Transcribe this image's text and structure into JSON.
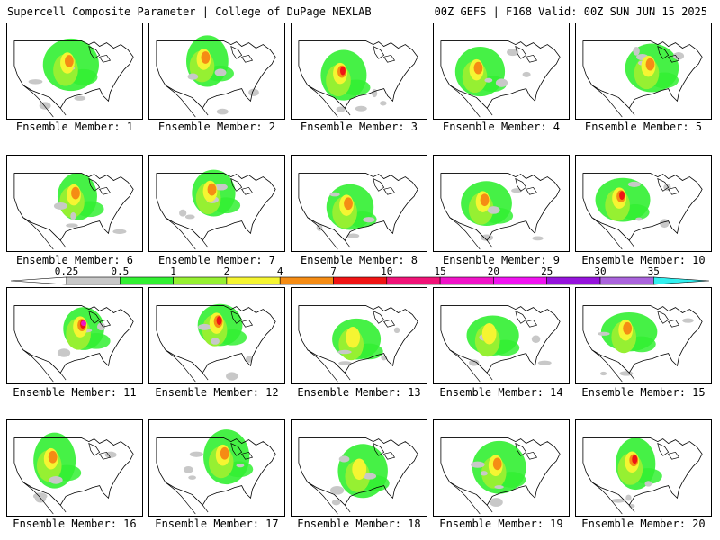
{
  "header": {
    "title": "Supercell Composite Parameter | College of DuPage NEXLAB",
    "run_info": "00Z GEFS | F168 Valid: 00Z SUN JUN 15 2025"
  },
  "members": [
    {
      "label": "Ensemble Member: 1",
      "intensity": 2
    },
    {
      "label": "Ensemble Member: 2",
      "intensity": 2
    },
    {
      "label": "Ensemble Member: 3",
      "intensity": 3
    },
    {
      "label": "Ensemble Member: 4",
      "intensity": 2
    },
    {
      "label": "Ensemble Member: 5",
      "intensity": 2
    },
    {
      "label": "Ensemble Member: 6",
      "intensity": 2
    },
    {
      "label": "Ensemble Member: 7",
      "intensity": 2
    },
    {
      "label": "Ensemble Member: 8",
      "intensity": 2
    },
    {
      "label": "Ensemble Member: 9",
      "intensity": 2
    },
    {
      "label": "Ensemble Member: 10",
      "intensity": 3
    },
    {
      "label": "Ensemble Member: 11",
      "intensity": 4
    },
    {
      "label": "Ensemble Member: 12",
      "intensity": 3
    },
    {
      "label": "Ensemble Member: 13",
      "intensity": 1
    },
    {
      "label": "Ensemble Member: 14",
      "intensity": 1
    },
    {
      "label": "Ensemble Member: 15",
      "intensity": 2
    },
    {
      "label": "Ensemble Member: 16",
      "intensity": 2
    },
    {
      "label": "Ensemble Member: 17",
      "intensity": 2
    },
    {
      "label": "Ensemble Member: 18",
      "intensity": 1
    },
    {
      "label": "Ensemble Member: 19",
      "intensity": 2
    },
    {
      "label": "Ensemble Member: 20",
      "intensity": 3
    }
  ],
  "colorbar": {
    "ticks": [
      "0.25",
      "0.5",
      "1",
      "2",
      "4",
      "7",
      "10",
      "15",
      "20",
      "25",
      "30",
      "35"
    ],
    "colors": [
      "#c8c8c8",
      "#32f032",
      "#96f032",
      "#f5f532",
      "#f58c14",
      "#f01414",
      "#f01478",
      "#f014c8",
      "#f014f0",
      "#9614dc",
      "#aa64dc",
      "#32f0f0"
    ],
    "under_color": "#ffffff",
    "over_color": "#32f0f0"
  }
}
